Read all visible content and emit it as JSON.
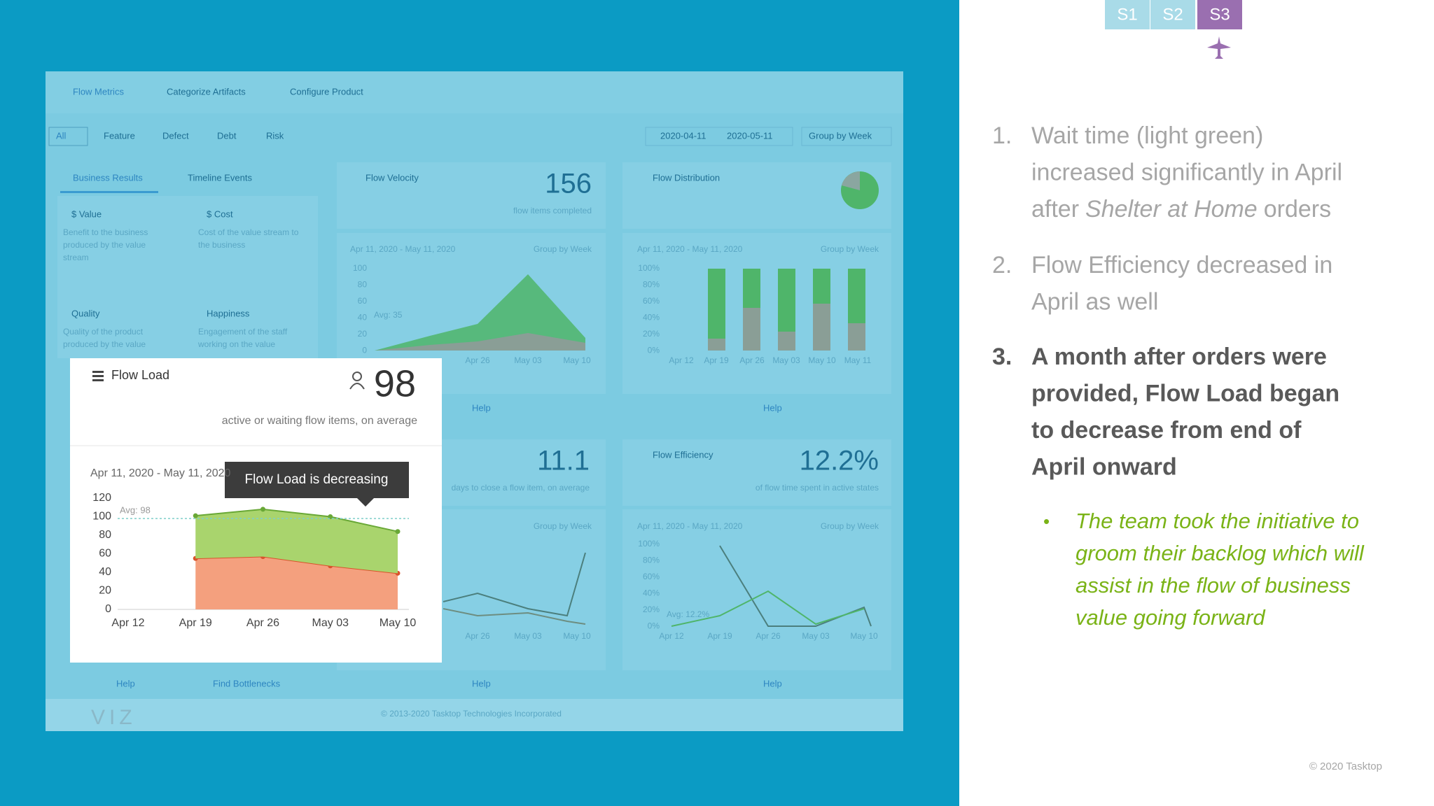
{
  "slide_tabs": [
    "S1",
    "S2",
    "S3"
  ],
  "dashboard": {
    "nav": [
      "Flow Metrics",
      "Categorize Artifacts",
      "Configure Product"
    ],
    "filters": [
      "All",
      "Feature",
      "Defect",
      "Debt",
      "Risk"
    ],
    "date_from": "2020-04-11",
    "date_to": "2020-05-11",
    "group_by": "Group by Week",
    "side_tabs": [
      "Business Results",
      "Timeline Events"
    ],
    "cards": [
      {
        "title": "$ Value",
        "lines": [
          "Benefit to the business",
          "produced by the value",
          "stream"
        ]
      },
      {
        "title": "$ Cost",
        "lines": [
          "Cost of the value stream to",
          "the business"
        ]
      },
      {
        "title": "Quality",
        "lines": [
          "Quality of the product",
          "produced by the value"
        ]
      },
      {
        "title": "Happiness",
        "lines": [
          "Engagement of the staff",
          "working on the value"
        ]
      }
    ],
    "velocity": {
      "title": "Flow Velocity",
      "metric": "156",
      "caption": "flow items completed",
      "range": "Apr 11, 2020 - May 11, 2020",
      "group": "Group by Week",
      "yticks": [
        "100",
        "80",
        "60",
        "40",
        "20",
        "0"
      ],
      "xlabels": [
        "Apr 26",
        "May 03",
        "May 10"
      ],
      "avg": "Avg: 35"
    },
    "distribution": {
      "title": "Flow Distribution",
      "range": "Apr 11, 2020 - May 11, 2020",
      "group": "Group by Week",
      "yticks": [
        "100%",
        "80%",
        "60%",
        "40%",
        "20%",
        "0%"
      ],
      "xlabels": [
        "Apr 12",
        "Apr 19",
        "Apr 26",
        "May 03",
        "May 10",
        "May 11"
      ]
    },
    "time": {
      "metric": "11.1",
      "caption": "days to close a flow item, on average",
      "group": "Group by Week",
      "xlabels": [
        "Apr 26",
        "May 03",
        "May 10"
      ]
    },
    "efficiency": {
      "title": "Flow Efficiency",
      "metric": "12.2%",
      "caption": "of flow time spent in active states",
      "range": "Apr 11, 2020 - May 11, 2020",
      "group": "Group by Week",
      "yticks": [
        "100%",
        "80%",
        "60%",
        "40%",
        "20%",
        "0%"
      ],
      "xlabels": [
        "Apr 12",
        "Apr 19",
        "Apr 26",
        "May 03",
        "May 10"
      ],
      "avg": "Avg: 12.2%"
    },
    "help": "Help",
    "find": "Find Bottlenecks",
    "copyright": "© 2013-2020 Tasktop Technologies Incorporated",
    "logo": "VIZ"
  },
  "flow_load": {
    "title": "Flow Load",
    "metric": "98",
    "caption": "active or waiting flow items, on average",
    "range": "Apr 11, 2020 - May 11, 2020",
    "tooltip": "Flow Load is decreasing",
    "chart": {
      "type": "area",
      "categories": [
        "Apr 12",
        "Apr 19",
        "Apr 26",
        "May 03",
        "May 10"
      ],
      "series": [
        {
          "color": "#f4a07e",
          "line_color": "#d9532b",
          "values": [
            null,
            55,
            57,
            47,
            39
          ]
        },
        {
          "color": "#a9d46d",
          "line_color": "#69a836",
          "values": [
            null,
            46,
            51,
            53,
            45
          ]
        }
      ],
      "ylim": [
        0,
        120
      ],
      "yticks": [
        0,
        20,
        40,
        60,
        80,
        100,
        120
      ],
      "avg": 98,
      "avg_label": "Avg: 98"
    }
  },
  "notes": {
    "items": [
      {
        "number": "1.",
        "lines": [
          "Wait time (light green)",
          "increased significantly in April"
        ],
        "last": {
          "before": "after",
          "emphasis": "Shelter at Home",
          "after": "orders"
        }
      },
      {
        "number": "2.",
        "lines": [
          "Flow Efficiency decreased in",
          "April as well"
        ]
      },
      {
        "number": "3.",
        "lines": [
          "A month after orders were",
          "provided, Flow Load began",
          "to decrease from end of",
          "April onward"
        ]
      }
    ],
    "sub_bullet": [
      "The team took the initiative to",
      "groom their backlog which will",
      "assist in the flow of business",
      "value going forward"
    ]
  },
  "footer": "© 2020 Tasktop"
}
